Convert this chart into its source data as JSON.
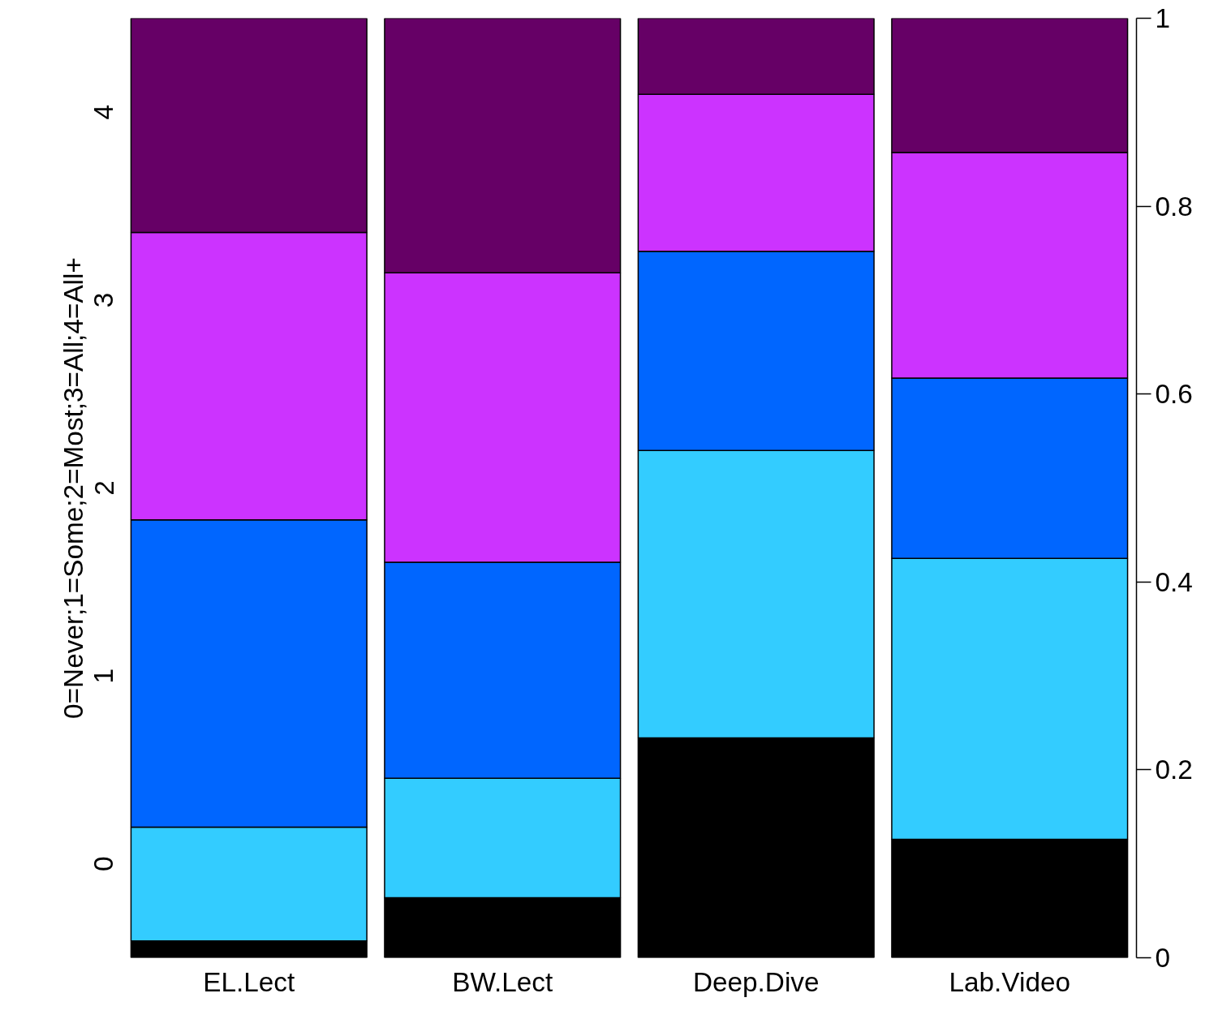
{
  "chart_data": {
    "type": "bar",
    "stacked": true,
    "ylabel": "0=Never;1=Some;2=Most;3=All;4=All+",
    "categories": [
      "EL.Lect",
      "BW.Lect",
      "Deep.Dive",
      "Lab.Video"
    ],
    "series": [
      {
        "color": "#000000",
        "axis": "y2",
        "values": [
          0.018,
          0.064,
          0.234,
          0.126
        ]
      },
      {
        "color": "#33ccff",
        "axis": "y2",
        "values": [
          0.121,
          0.127,
          0.306,
          0.299
        ]
      },
      {
        "color": "#0066ff",
        "axis": "y2",
        "values": [
          0.327,
          0.23,
          0.212,
          0.192
        ]
      },
      {
        "color": "#cc33ff",
        "axis": "y2",
        "values": [
          0.306,
          0.308,
          0.167,
          0.24
        ]
      },
      {
        "color": "#660066",
        "axis": "y2",
        "values": [
          0.228,
          0.271,
          0.081,
          0.143
        ]
      }
    ],
    "ylim": [
      -0.5,
      4.5
    ],
    "yticks": [
      0,
      1,
      2,
      3,
      4
    ],
    "y2lim": [
      0,
      1
    ],
    "y2ticks": [
      0,
      0.2,
      0.4,
      0.6,
      0.8,
      1
    ]
  }
}
